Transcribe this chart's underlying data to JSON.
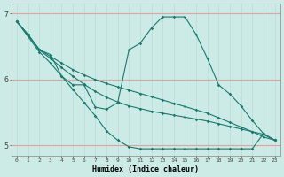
{
  "xlabel": "Humidex (Indice chaleur)",
  "bg_color": "#cceae6",
  "line_color": "#1a7a6e",
  "grid_color_h": "#e8a0a0",
  "grid_color_v": "#b8dcd8",
  "xlim": [
    -0.5,
    23.5
  ],
  "ylim": [
    4.85,
    7.15
  ],
  "yticks": [
    5,
    6,
    7
  ],
  "xticks": [
    0,
    1,
    2,
    3,
    4,
    5,
    6,
    7,
    8,
    9,
    10,
    11,
    12,
    13,
    14,
    15,
    16,
    17,
    18,
    19,
    20,
    21,
    22,
    23
  ],
  "line1_x": [
    0,
    1,
    2,
    3,
    4,
    5,
    6,
    7,
    8,
    9,
    10,
    11,
    12,
    13,
    14,
    15,
    16,
    17,
    18,
    19,
    20,
    21,
    22,
    23
  ],
  "line1_y": [
    6.88,
    6.68,
    6.45,
    6.38,
    6.05,
    5.92,
    5.92,
    5.58,
    5.55,
    5.65,
    6.45,
    6.55,
    6.78,
    6.95,
    6.95,
    6.95,
    6.68,
    6.32,
    5.92,
    5.78,
    5.6,
    5.38,
    5.18,
    5.08
  ],
  "line2_x": [
    0,
    1,
    2,
    3,
    4,
    5,
    6,
    7,
    8,
    9,
    10,
    11,
    12,
    13,
    14,
    15,
    16,
    17,
    18,
    19,
    20,
    21,
    22,
    23
  ],
  "line2_y": [
    6.88,
    6.68,
    6.45,
    6.32,
    6.18,
    6.05,
    5.93,
    5.82,
    5.73,
    5.66,
    5.6,
    5.56,
    5.52,
    5.49,
    5.46,
    5.43,
    5.4,
    5.37,
    5.33,
    5.29,
    5.25,
    5.21,
    5.17,
    5.08
  ],
  "line3_x": [
    0,
    1,
    2,
    3,
    4,
    5,
    6,
    7,
    8,
    9,
    10,
    11,
    12,
    13,
    14,
    15,
    16,
    17,
    18,
    19,
    20,
    21,
    22,
    23
  ],
  "line3_y": [
    6.88,
    6.68,
    6.46,
    6.35,
    6.25,
    6.15,
    6.07,
    6.0,
    5.94,
    5.89,
    5.84,
    5.79,
    5.74,
    5.69,
    5.64,
    5.59,
    5.54,
    5.49,
    5.42,
    5.35,
    5.28,
    5.21,
    5.13,
    5.08
  ],
  "line4_x": [
    0,
    1,
    2,
    3,
    4,
    5,
    6,
    7,
    8,
    9,
    10,
    11,
    12,
    13,
    14,
    15,
    16,
    17,
    18,
    19,
    20,
    21,
    22,
    23
  ],
  "line4_y": [
    6.88,
    6.65,
    6.42,
    6.25,
    6.05,
    5.85,
    5.65,
    5.45,
    5.22,
    5.08,
    4.98,
    4.95,
    4.95,
    4.95,
    4.95,
    4.95,
    4.95,
    4.95,
    4.95,
    4.95,
    4.95,
    4.95,
    5.18,
    5.08
  ]
}
